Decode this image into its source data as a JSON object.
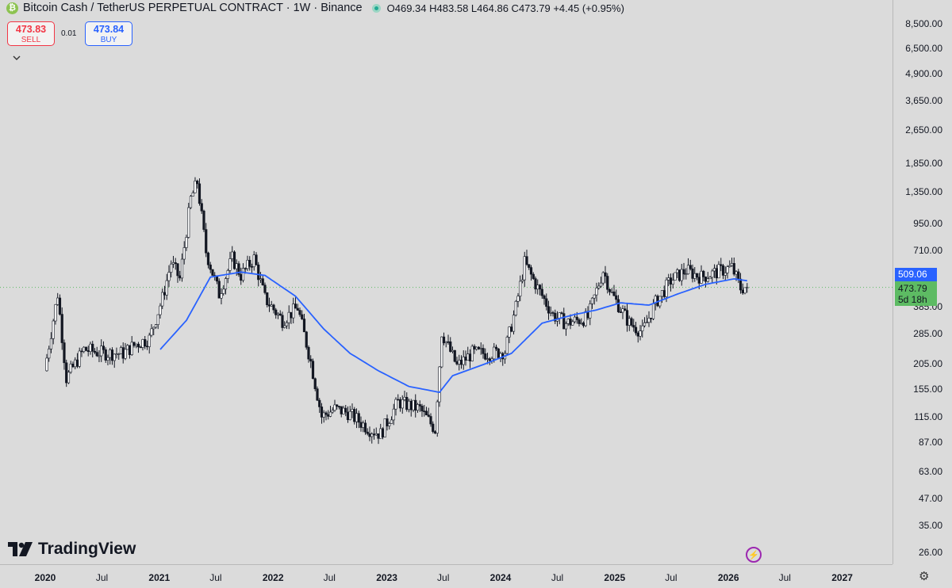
{
  "header": {
    "symbol": "Bitcoin Cash / TetherUS PERPETUAL CONTRACT · 1W · Binance",
    "coin_glyph": "₿",
    "ohlc": {
      "o_label": "O",
      "o": "469.34",
      "h_label": "H",
      "h": "483.58",
      "l_label": "L",
      "l": "464.86",
      "c_label": "C",
      "c": "473.79",
      "change": "+4.45 (+0.95%)"
    }
  },
  "trade": {
    "sell_price": "473.83",
    "sell_label": "SELL",
    "spread": "0.01",
    "buy_price": "473.84",
    "buy_label": "BUY"
  },
  "collapse_icon": "chevron-down-icon",
  "price_axis": [
    "8,500.00",
    "6,500.00",
    "4,900.00",
    "3,650.00",
    "2,650.00",
    "1,850.00",
    "1,350.00",
    "950.00",
    "710.00",
    "509.06",
    "385.00",
    "285.00",
    "205.00",
    "155.00",
    "115.00",
    "87.00",
    "63.00",
    "47.00",
    "35.00",
    "26.00"
  ],
  "ma_label": "509.06",
  "last_price_label": "473.79",
  "countdown_label": "5d 18h",
  "time_axis": [
    "2020",
    "Jul",
    "2021",
    "Jul",
    "2022",
    "Jul",
    "2023",
    "Jul",
    "2024",
    "Jul",
    "2025",
    "Jul",
    "2026",
    "Jul",
    "2027"
  ],
  "logo_text": "TradingView",
  "colors": {
    "background": "#dbdbdb",
    "up": "#ffffff",
    "down": "#131722",
    "ma": "#2962ff",
    "sell": "#f23645",
    "buy": "#2962ff",
    "last": "#5dbb63"
  },
  "chart_data": {
    "type": "candlestick",
    "scale": "log",
    "x_range": [
      "2019-12",
      "2027-03"
    ],
    "y_range": [
      22,
      10500
    ],
    "interval": "1W",
    "moving_average_color": "#2962ff",
    "price_anchors": [
      [
        "2020-01-06",
        190
      ],
      [
        "2020-02-17",
        440
      ],
      [
        "2020-03-16",
        175
      ],
      [
        "2020-05-11",
        240
      ],
      [
        "2020-07-13",
        230
      ],
      [
        "2020-09-14",
        230
      ],
      [
        "2020-10-26",
        255
      ],
      [
        "2020-12-07",
        270
      ],
      [
        "2021-01-18",
        420
      ],
      [
        "2021-02-15",
        620
      ],
      [
        "2021-03-15",
        520
      ],
      [
        "2021-04-19",
        1250
      ],
      [
        "2021-05-10",
        1500
      ],
      [
        "2021-06-07",
        700
      ],
      [
        "2021-07-19",
        440
      ],
      [
        "2021-08-30",
        650
      ],
      [
        "2021-09-27",
        540
      ],
      [
        "2021-11-08",
        650
      ],
      [
        "2021-12-13",
        420
      ],
      [
        "2022-02-07",
        330
      ],
      [
        "2022-03-28",
        380
      ],
      [
        "2022-05-09",
        210
      ],
      [
        "2022-06-13",
        115
      ],
      [
        "2022-07-25",
        125
      ],
      [
        "2022-09-05",
        120
      ],
      [
        "2022-11-14",
        100
      ],
      [
        "2022-12-19",
        95
      ],
      [
        "2023-02-13",
        135
      ],
      [
        "2023-04-24",
        125
      ],
      [
        "2023-06-12",
        100
      ],
      [
        "2023-07-03",
        290
      ],
      [
        "2023-08-21",
        200
      ],
      [
        "2023-10-09",
        230
      ],
      [
        "2023-12-11",
        230
      ],
      [
        "2024-01-22",
        235
      ],
      [
        "2024-02-26",
        380
      ],
      [
        "2024-03-25",
        620
      ],
      [
        "2024-05-06",
        470
      ],
      [
        "2024-06-24",
        350
      ],
      [
        "2024-08-05",
        320
      ],
      [
        "2024-10-14",
        340
      ],
      [
        "2024-12-02",
        570
      ],
      [
        "2024-12-30",
        440
      ],
      [
        "2025-02-24",
        320
      ],
      [
        "2025-04-07",
        290
      ],
      [
        "2025-05-19",
        400
      ],
      [
        "2025-07-07",
        510
      ],
      [
        "2025-08-25",
        570
      ],
      [
        "2025-10-13",
        530
      ],
      [
        "2026-01-19",
        590
      ],
      [
        "2026-02-16",
        470
      ],
      [
        "2026-03-02",
        473.79
      ]
    ],
    "ma_anchors": [
      [
        "2021-01-04",
        240
      ],
      [
        "2021-03-29",
        330
      ],
      [
        "2021-06-14",
        530
      ],
      [
        "2021-09-20",
        560
      ],
      [
        "2021-12-06",
        540
      ],
      [
        "2022-03-14",
        430
      ],
      [
        "2022-06-13",
        300
      ],
      [
        "2022-09-05",
        230
      ],
      [
        "2022-12-05",
        190
      ],
      [
        "2023-03-13",
        160
      ],
      [
        "2023-06-19",
        150
      ],
      [
        "2023-07-31",
        180
      ],
      [
        "2023-11-13",
        205
      ],
      [
        "2024-02-05",
        230
      ],
      [
        "2024-05-13",
        320
      ],
      [
        "2024-08-19",
        350
      ],
      [
        "2024-11-04",
        370
      ],
      [
        "2025-01-20",
        400
      ],
      [
        "2025-04-21",
        390
      ],
      [
        "2025-07-21",
        440
      ],
      [
        "2025-10-20",
        490
      ],
      [
        "2026-01-19",
        520
      ],
      [
        "2026-03-02",
        509.06
      ]
    ]
  }
}
